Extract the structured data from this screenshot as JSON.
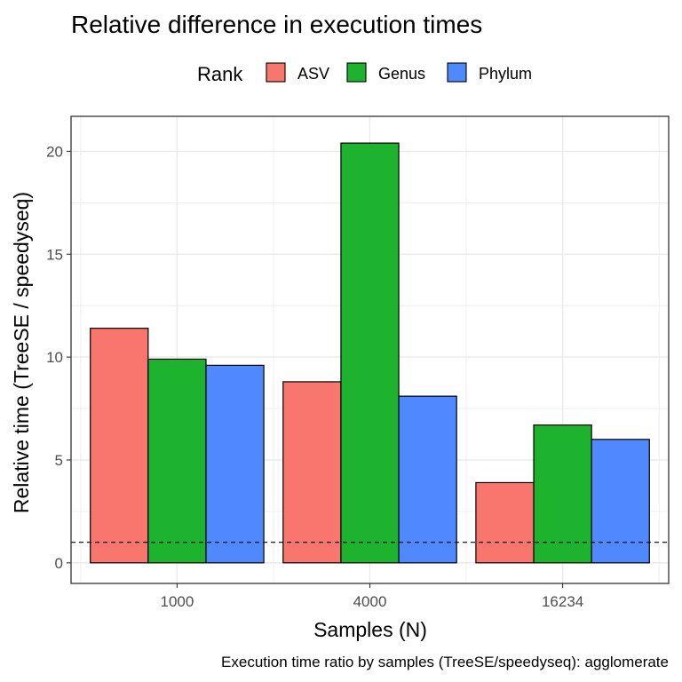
{
  "chart_data": {
    "type": "bar",
    "title": "Relative difference in execution times",
    "xlabel": "Samples (N)",
    "ylabel": "Relative time (TreeSE / speedyseq)",
    "caption": "Execution time ratio by samples (TreeSE/speedyseq):  agglomerate",
    "legend": {
      "title": "Rank",
      "position": "top"
    },
    "categories": [
      "1000",
      "4000",
      "16234"
    ],
    "series": [
      {
        "name": "ASV",
        "color": "#F8766D",
        "values": [
          11.4,
          8.8,
          3.9
        ]
      },
      {
        "name": "Genus",
        "color": "#1DB32E",
        "values": [
          9.9,
          20.4,
          6.7
        ]
      },
      {
        "name": "Phylum",
        "color": "#4F88FF",
        "values": [
          9.6,
          8.1,
          6.0
        ]
      }
    ],
    "ylim": [
      -1.0,
      21.7
    ],
    "yticks": [
      "0",
      "5",
      "10",
      "15",
      "20"
    ],
    "reference_line": {
      "y": 1,
      "style": "dashed"
    },
    "grid": true
  }
}
